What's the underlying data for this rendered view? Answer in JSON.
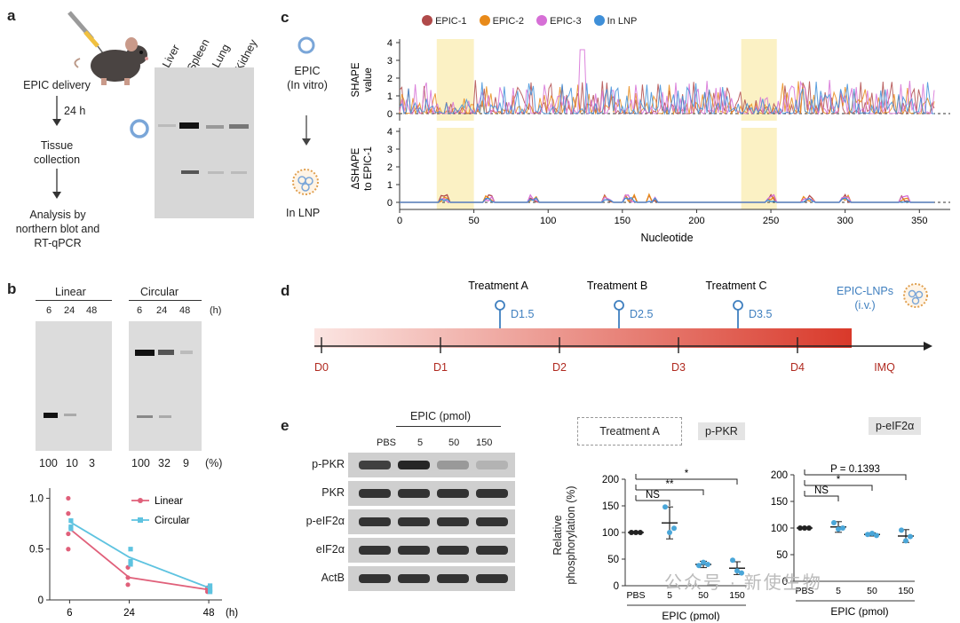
{
  "panel_a": {
    "label": "a",
    "tissues": [
      "Liver",
      "Spleen",
      "Lung",
      "Kidney"
    ],
    "steps": [
      "EPIC delivery",
      "24 h",
      "Tissue collection",
      "Analysis by northern blot and RT-qPCR"
    ]
  },
  "panel_b": {
    "label": "b",
    "groups": [
      "Linear",
      "Circular"
    ],
    "timepoints": [
      "6",
      "24",
      "48"
    ],
    "hours_unit": "(h)",
    "linear_percent": [
      "100",
      "10",
      "3"
    ],
    "circular_percent": [
      "100",
      "32",
      "9"
    ],
    "percent_unit": "(%)"
  },
  "panel_c": {
    "label": "c",
    "legend": [
      "EPIC-1",
      "EPIC-2",
      "EPIC-3",
      "In LNP"
    ],
    "left_top": [
      "EPIC",
      "(In vitro)"
    ],
    "left_bottom": "In LNP",
    "top_ylabel": [
      "SHAPE",
      "value"
    ],
    "bottom_ylabel": [
      "ΔSHAPE",
      "to EPIC-1"
    ],
    "xlabel": "Nucleotide",
    "colors": {
      "EPIC-1": "#b04a4a",
      "EPIC-2": "#e88a1a",
      "EPIC-3": "#d66fd6",
      "In LNP": "#3f8fd8"
    }
  },
  "panel_d": {
    "label": "d",
    "treatments": [
      {
        "name": "Treatment A",
        "day": "D1.5"
      },
      {
        "name": "Treatment B",
        "day": "D2.5"
      },
      {
        "name": "Treatment C",
        "day": "D3.5"
      }
    ],
    "days": [
      "D0",
      "D1",
      "D2",
      "D3",
      "D4"
    ],
    "end_label": "IMQ",
    "lnp_label": [
      "EPIC-LNPs",
      "(i.v.)"
    ]
  },
  "panel_e": {
    "label": "e",
    "epic_header": "EPIC (pmol)",
    "lanes": [
      "PBS",
      "5",
      "50",
      "150"
    ],
    "blot_rows": [
      "p-PKR",
      "PKR",
      "p-eIF2α",
      "eIF2α",
      "ActB"
    ],
    "treatment_box": "Treatment  A",
    "ylabel": [
      "Relative",
      "phosphorylation (%)"
    ],
    "xlabel": "EPIC (pmol)",
    "sig_pkr": [
      "*",
      "**",
      "NS"
    ],
    "sig_eif": [
      "P = 0.1393",
      "*",
      "NS"
    ]
  },
  "watermark": "公众号 · 新使生物",
  "chart_data": [
    {
      "type": "line",
      "title": "",
      "xlabel": "",
      "ylabel": "",
      "x": [
        6,
        24,
        48
      ],
      "xlim": [
        0,
        52
      ],
      "ylim": [
        0,
        1.1
      ],
      "xticks": [
        "6",
        "24",
        "48"
      ],
      "xunit": "(h)",
      "yticks": [
        "0",
        "0.5",
        "1.0"
      ],
      "series": [
        {
          "name": "Linear",
          "color": "#e0607a",
          "values": [
            0.7,
            0.22,
            0.1
          ],
          "points": [
            [
              6,
              1.0
            ],
            [
              6,
              0.85
            ],
            [
              6,
              0.65
            ],
            [
              6,
              0.5
            ],
            [
              24,
              0.32
            ],
            [
              24,
              0.15
            ],
            [
              24,
              0.22
            ],
            [
              48,
              0.12
            ],
            [
              48,
              0.08
            ],
            [
              48,
              0.1
            ]
          ]
        },
        {
          "name": "Circular",
          "color": "#5ec3e0",
          "values": [
            0.77,
            0.42,
            0.12
          ],
          "points": [
            [
              6,
              0.78
            ],
            [
              6,
              0.72
            ],
            [
              6,
              0.7
            ],
            [
              24,
              0.5
            ],
            [
              24,
              0.38
            ],
            [
              24,
              0.35
            ],
            [
              48,
              0.14
            ],
            [
              48,
              0.1
            ],
            [
              48,
              0.08
            ]
          ]
        }
      ]
    },
    {
      "type": "scatter",
      "title": "p-PKR",
      "xlabel": "EPIC (pmol)",
      "ylabel": "Relative phosphorylation (%)",
      "categories": [
        "PBS",
        "5",
        "50",
        "150"
      ],
      "ylim": [
        0,
        200
      ],
      "yticks": [
        "0",
        "50",
        "100",
        "150",
        "200"
      ],
      "means": [
        100,
        118,
        40,
        33
      ],
      "errors": [
        0,
        30,
        6,
        12
      ],
      "points": [
        [
          100,
          100,
          100
        ],
        [
          148,
          100,
          108
        ],
        [
          38,
          44,
          40
        ],
        [
          48,
          28,
          24
        ]
      ]
    },
    {
      "type": "scatter",
      "title": "p-eIF2α",
      "xlabel": "EPIC (pmol)",
      "ylabel": "",
      "categories": [
        "PBS",
        "5",
        "50",
        "150"
      ],
      "ylim": [
        0,
        200
      ],
      "yticks": [
        "0",
        "50",
        "100",
        "150",
        "200"
      ],
      "means": [
        100,
        102,
        88,
        85
      ],
      "errors": [
        0,
        10,
        3,
        12
      ],
      "points": [
        [
          100,
          100,
          100
        ],
        [
          110,
          98,
          100
        ],
        [
          88,
          90,
          86
        ],
        [
          96,
          76,
          84
        ]
      ]
    }
  ]
}
